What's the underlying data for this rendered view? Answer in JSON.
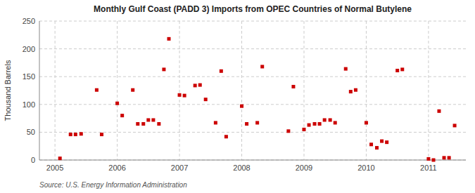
{
  "chart_data": {
    "type": "scatter",
    "title": "Monthly Gulf Coast (PADD 3) Imports from OPEC Countries of Normal Butylene",
    "ylabel": "Thousand Barrels",
    "annotations": [
      "Source: U.S. Energy Information Administration"
    ],
    "color": "#cc0000",
    "marker": "square",
    "grid": true,
    "xlim": [
      2004.75,
      2011.6
    ],
    "ylim": [
      0,
      250
    ],
    "xticks": [
      2005,
      2006,
      2007,
      2008,
      2009,
      2010,
      2011
    ],
    "yticks": [
      0,
      50,
      100,
      150,
      200,
      250
    ],
    "x": [
      2005.08,
      2005.25,
      2005.33,
      2005.42,
      2005.67,
      2005.75,
      2006.0,
      2006.08,
      2006.25,
      2006.33,
      2006.42,
      2006.5,
      2006.58,
      2006.67,
      2006.75,
      2006.83,
      2007.0,
      2007.08,
      2007.25,
      2007.33,
      2007.42,
      2007.58,
      2007.67,
      2007.75,
      2008.0,
      2008.08,
      2008.25,
      2008.33,
      2008.75,
      2008.83,
      2009.0,
      2009.08,
      2009.17,
      2009.25,
      2009.33,
      2009.42,
      2009.5,
      2009.67,
      2009.75,
      2009.83,
      2010.0,
      2010.08,
      2010.17,
      2010.25,
      2010.33,
      2010.5,
      2010.58,
      2011.0,
      2011.08,
      2011.17,
      2011.25,
      2011.33,
      2011.42
    ],
    "values": [
      3,
      46,
      46,
      47,
      126,
      46,
      102,
      80,
      126,
      65,
      65,
      72,
      72,
      65,
      163,
      218,
      117,
      116,
      134,
      135,
      109,
      67,
      160,
      42,
      97,
      65,
      67,
      168,
      52,
      132,
      55,
      63,
      65,
      65,
      72,
      72,
      67,
      164,
      123,
      126,
      67,
      28,
      22,
      34,
      32,
      161,
      163,
      2,
      0,
      88,
      4,
      4,
      62
    ]
  }
}
